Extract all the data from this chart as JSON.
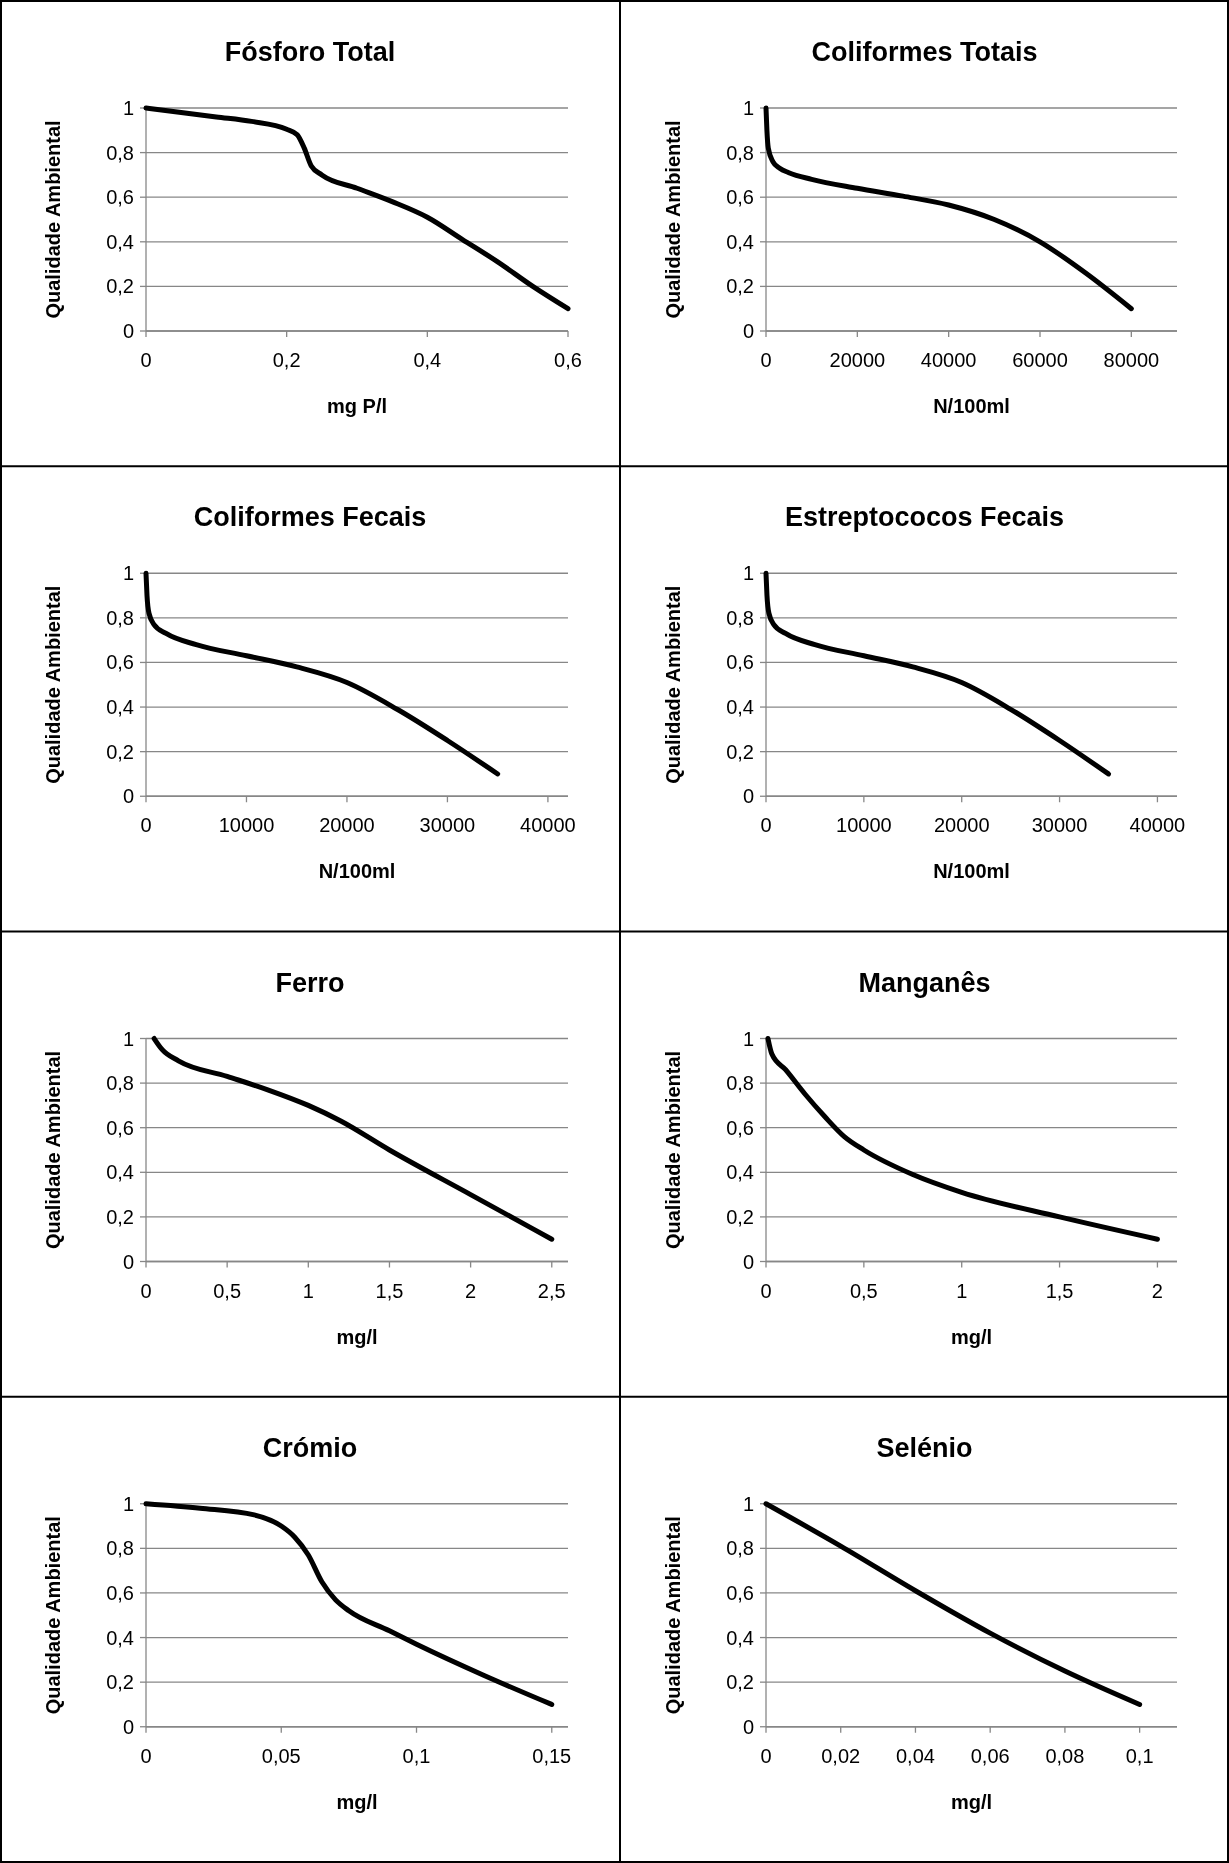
{
  "chart_data": [
    {
      "type": "line",
      "title": "Fósforo Total",
      "xlabel": "mg P/l",
      "ylabel": "Qualidade Ambiental",
      "grid": "y",
      "color": "#000000",
      "xlim": [
        0,
        0.6
      ],
      "xticks": [
        {
          "value": 0,
          "label": "0"
        },
        {
          "value": 0.2,
          "label": "0,2"
        },
        {
          "value": 0.4,
          "label": "0,4"
        },
        {
          "value": 0.6,
          "label": "0,6"
        }
      ],
      "ylim": [
        0,
        1
      ],
      "yticks": [
        {
          "value": 0,
          "label": "0"
        },
        {
          "value": 0.2,
          "label": "0,2"
        },
        {
          "value": 0.4,
          "label": "0,4"
        },
        {
          "value": 0.6,
          "label": "0,6"
        },
        {
          "value": 0.8,
          "label": "0,8"
        },
        {
          "value": 1,
          "label": "1"
        }
      ],
      "x": [
        0,
        0.05,
        0.1,
        0.15,
        0.2,
        0.215,
        0.225,
        0.235,
        0.25,
        0.3,
        0.35,
        0.4,
        0.45,
        0.5,
        0.55,
        0.6
      ],
      "values": [
        1,
        0.98,
        0.96,
        0.94,
        0.905,
        0.88,
        0.82,
        0.74,
        0.7,
        0.64,
        0.58,
        0.51,
        0.41,
        0.31,
        0.2,
        0.1
      ]
    },
    {
      "type": "line",
      "title": "Coliformes Totais",
      "xlabel": "N/100ml",
      "ylabel": "Qualidade Ambiental",
      "grid": "y",
      "color": "#000000",
      "xlim": [
        0,
        90000
      ],
      "xticks": [
        {
          "value": 0,
          "label": "0"
        },
        {
          "value": 20000,
          "label": "20000"
        },
        {
          "value": 40000,
          "label": "40000"
        },
        {
          "value": 60000,
          "label": "60000"
        },
        {
          "value": 80000,
          "label": "80000"
        }
      ],
      "ylim": [
        0,
        1
      ],
      "yticks": [
        {
          "value": 0,
          "label": "0"
        },
        {
          "value": 0.2,
          "label": "0,2"
        },
        {
          "value": 0.4,
          "label": "0,4"
        },
        {
          "value": 0.6,
          "label": "0,6"
        },
        {
          "value": 0.8,
          "label": "0,8"
        },
        {
          "value": 1,
          "label": "1"
        }
      ],
      "x": [
        0,
        200,
        500,
        1500,
        3000,
        5000,
        10000,
        20000,
        30000,
        40000,
        50000,
        60000,
        70000,
        80000
      ],
      "values": [
        1,
        0.9,
        0.82,
        0.76,
        0.73,
        0.71,
        0.68,
        0.64,
        0.605,
        0.565,
        0.5,
        0.4,
        0.26,
        0.1
      ]
    },
    {
      "type": "line",
      "title": "Coliformes Fecais",
      "xlabel": "N/100ml",
      "ylabel": "Qualidade Ambiental",
      "grid": "y",
      "color": "#000000",
      "xlim": [
        0,
        42000
      ],
      "xticks": [
        {
          "value": 0,
          "label": "0"
        },
        {
          "value": 10000,
          "label": "10000"
        },
        {
          "value": 20000,
          "label": "20000"
        },
        {
          "value": 30000,
          "label": "30000"
        },
        {
          "value": 40000,
          "label": "40000"
        }
      ],
      "ylim": [
        0,
        1
      ],
      "yticks": [
        {
          "value": 0,
          "label": "0"
        },
        {
          "value": 0.2,
          "label": "0,2"
        },
        {
          "value": 0.4,
          "label": "0,4"
        },
        {
          "value": 0.6,
          "label": "0,6"
        },
        {
          "value": 0.8,
          "label": "0,8"
        },
        {
          "value": 1,
          "label": "1"
        }
      ],
      "x": [
        0,
        100,
        300,
        800,
        2000,
        5000,
        10000,
        15000,
        20000,
        25000,
        30000,
        35000
      ],
      "values": [
        1,
        0.9,
        0.82,
        0.77,
        0.73,
        0.68,
        0.63,
        0.58,
        0.51,
        0.39,
        0.25,
        0.1
      ]
    },
    {
      "type": "line",
      "title": "Estreptococos Fecais",
      "xlabel": "N/100ml",
      "ylabel": "Qualidade Ambiental",
      "grid": "y",
      "color": "#000000",
      "xlim": [
        0,
        42000
      ],
      "xticks": [
        {
          "value": 0,
          "label": "0"
        },
        {
          "value": 10000,
          "label": "10000"
        },
        {
          "value": 20000,
          "label": "20000"
        },
        {
          "value": 30000,
          "label": "30000"
        },
        {
          "value": 40000,
          "label": "40000"
        }
      ],
      "ylim": [
        0,
        1
      ],
      "yticks": [
        {
          "value": 0,
          "label": "0"
        },
        {
          "value": 0.2,
          "label": "0,2"
        },
        {
          "value": 0.4,
          "label": "0,4"
        },
        {
          "value": 0.6,
          "label": "0,6"
        },
        {
          "value": 0.8,
          "label": "0,8"
        },
        {
          "value": 1,
          "label": "1"
        }
      ],
      "x": [
        0,
        100,
        300,
        800,
        2000,
        5000,
        10000,
        15000,
        20000,
        25000,
        30000,
        35000
      ],
      "values": [
        1,
        0.9,
        0.82,
        0.77,
        0.73,
        0.68,
        0.63,
        0.58,
        0.51,
        0.39,
        0.25,
        0.1
      ]
    },
    {
      "type": "line",
      "title": "Ferro",
      "xlabel": "mg/l",
      "ylabel": "Qualidade Ambiental",
      "grid": "y",
      "color": "#000000",
      "xlim": [
        0,
        2.6
      ],
      "xticks": [
        {
          "value": 0,
          "label": "0"
        },
        {
          "value": 0.5,
          "label": "0,5"
        },
        {
          "value": 1,
          "label": "1"
        },
        {
          "value": 1.5,
          "label": "1,5"
        },
        {
          "value": 2,
          "label": "2"
        },
        {
          "value": 2.5,
          "label": "2,5"
        }
      ],
      "ylim": [
        0,
        1
      ],
      "yticks": [
        {
          "value": 0,
          "label": "0"
        },
        {
          "value": 0.2,
          "label": "0,2"
        },
        {
          "value": 0.4,
          "label": "0,4"
        },
        {
          "value": 0.6,
          "label": "0,6"
        },
        {
          "value": 0.8,
          "label": "0,8"
        },
        {
          "value": 1,
          "label": "1"
        }
      ],
      "x": [
        0.05,
        0.1,
        0.2,
        0.5,
        0.75,
        1,
        1.2,
        1.5,
        2,
        2.5
      ],
      "values": [
        1,
        0.95,
        0.9,
        0.83,
        0.77,
        0.7,
        0.63,
        0.5,
        0.3,
        0.1
      ]
    },
    {
      "type": "line",
      "title": "Manganês",
      "xlabel": "mg/l",
      "ylabel": "Qualidade Ambiental",
      "grid": "y",
      "color": "#000000",
      "xlim": [
        0,
        2.1
      ],
      "xticks": [
        {
          "value": 0,
          "label": "0"
        },
        {
          "value": 0.5,
          "label": "0,5"
        },
        {
          "value": 1,
          "label": "1"
        },
        {
          "value": 1.5,
          "label": "1,5"
        },
        {
          "value": 2,
          "label": "2"
        }
      ],
      "ylim": [
        0,
        1
      ],
      "yticks": [
        {
          "value": 0,
          "label": "0"
        },
        {
          "value": 0.2,
          "label": "0,2"
        },
        {
          "value": 0.4,
          "label": "0,4"
        },
        {
          "value": 0.6,
          "label": "0,6"
        },
        {
          "value": 0.8,
          "label": "0,8"
        },
        {
          "value": 1,
          "label": "1"
        }
      ],
      "x": [
        0.01,
        0.03,
        0.1,
        0.2,
        0.3,
        0.4,
        0.5,
        0.75,
        1,
        1.5,
        2
      ],
      "values": [
        1,
        0.93,
        0.86,
        0.75,
        0.65,
        0.56,
        0.5,
        0.39,
        0.31,
        0.2,
        0.1
      ]
    },
    {
      "type": "line",
      "title": "Crómio",
      "xlabel": "mg/l",
      "ylabel": "Qualidade Ambiental",
      "grid": "y",
      "color": "#000000",
      "xlim": [
        0,
        0.156
      ],
      "xticks": [
        {
          "value": 0,
          "label": "0"
        },
        {
          "value": 0.05,
          "label": "0,05"
        },
        {
          "value": 0.1,
          "label": "0,1"
        },
        {
          "value": 0.15,
          "label": "0,15"
        }
      ],
      "ylim": [
        0,
        1
      ],
      "yticks": [
        {
          "value": 0,
          "label": "0"
        },
        {
          "value": 0.2,
          "label": "0,2"
        },
        {
          "value": 0.4,
          "label": "0,4"
        },
        {
          "value": 0.6,
          "label": "0,6"
        },
        {
          "value": 0.8,
          "label": "0,8"
        },
        {
          "value": 1,
          "label": "1"
        }
      ],
      "x": [
        0,
        0.02,
        0.04,
        0.05,
        0.055,
        0.06,
        0.065,
        0.07,
        0.075,
        0.09,
        0.1,
        0.125,
        0.15
      ],
      "values": [
        1,
        0.98,
        0.95,
        0.9,
        0.85,
        0.77,
        0.65,
        0.57,
        0.52,
        0.43,
        0.37,
        0.23,
        0.1
      ]
    },
    {
      "type": "line",
      "title": "Selénio",
      "xlabel": "mg/l",
      "ylabel": "Qualidade Ambiental",
      "grid": "y",
      "color": "#000000",
      "xlim": [
        0,
        0.11
      ],
      "xticks": [
        {
          "value": 0,
          "label": "0"
        },
        {
          "value": 0.02,
          "label": "0,02"
        },
        {
          "value": 0.04,
          "label": "0,04"
        },
        {
          "value": 0.06,
          "label": "0,06"
        },
        {
          "value": 0.08,
          "label": "0,08"
        },
        {
          "value": 0.1,
          "label": "0,1"
        }
      ],
      "ylim": [
        0,
        1
      ],
      "yticks": [
        {
          "value": 0,
          "label": "0"
        },
        {
          "value": 0.2,
          "label": "0,2"
        },
        {
          "value": 0.4,
          "label": "0,4"
        },
        {
          "value": 0.6,
          "label": "0,6"
        },
        {
          "value": 0.8,
          "label": "0,8"
        },
        {
          "value": 1,
          "label": "1"
        }
      ],
      "x": [
        0,
        0.02,
        0.04,
        0.06,
        0.08,
        0.1
      ],
      "values": [
        1,
        0.81,
        0.61,
        0.42,
        0.25,
        0.1
      ]
    }
  ]
}
